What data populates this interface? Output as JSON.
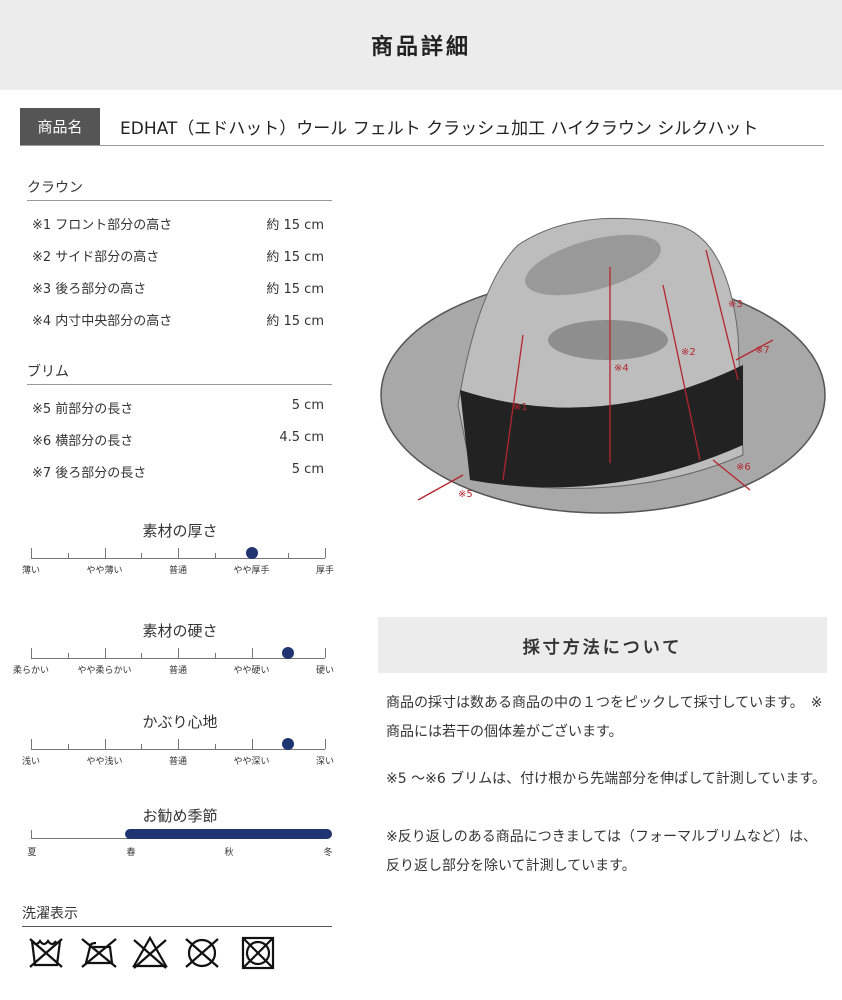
{
  "header": {
    "title": "商品詳細"
  },
  "product": {
    "label": "商品名",
    "name": "EDHAT（エドハット）ウール フェルト クラッシュ加工 ハイクラウン シルクハット"
  },
  "crown": {
    "title": "クラウン",
    "rows": [
      {
        "label": "※1  フロント部分の高さ",
        "value": "約 15 cm"
      },
      {
        "label": "※2  サイド部分の高さ",
        "value": "約 15 cm"
      },
      {
        "label": "※3  後ろ部分の高さ",
        "value": "約 15 cm"
      },
      {
        "label": "※4  内寸中央部分の高さ",
        "value": "約 15 cm"
      }
    ]
  },
  "brim": {
    "title": "ブリム",
    "rows": [
      {
        "label": "※5  前部分の長さ",
        "value": "5 cm"
      },
      {
        "label": "※6  横部分の長さ",
        "value": "4.5 cm"
      },
      {
        "label": "※7  後ろ部分の長さ",
        "value": "5 cm"
      }
    ]
  },
  "scales": [
    {
      "title": "素材の厚さ",
      "labels": [
        "薄い",
        "やや薄い",
        "普通",
        "やや厚手",
        "厚手"
      ],
      "level": 0.75
    },
    {
      "title": "素材の硬さ",
      "labels": [
        "柔らかい",
        "やや柔らかい",
        "普通",
        "やや硬い",
        "硬い"
      ],
      "level": 0.875
    },
    {
      "title": "かぶり心地",
      "labels": [
        "浅い",
        "やや浅い",
        "普通",
        "やや深い",
        "深い"
      ],
      "level": 0.875
    }
  ],
  "season": {
    "title": "お勧め季節",
    "labels": [
      "夏",
      "春",
      "秋",
      "冬"
    ],
    "range": [
      "春",
      "冬"
    ],
    "color": "#1f3470"
  },
  "laundry": {
    "title": "洗濯表示",
    "icons": [
      "no-wash-icon",
      "no-iron-icon",
      "no-bleach-icon",
      "no-tumble-dry-icon",
      "no-machine-dry-icon"
    ]
  },
  "diagram": {
    "marks": [
      "※1",
      "※2",
      "※3",
      "※4",
      "※5",
      "※6",
      "※7"
    ]
  },
  "measure": {
    "title": "採寸方法について",
    "p1": "商品の採寸は数ある商品の中の１つをピックして採寸しています。　※商品には若干の個体差がございます。",
    "p2": "※5 ～※6 ブリムは、付け根から先端部分を伸ばして計測しています。",
    "p3": "※反り返しのある商品につきましては（フォーマルブリムなど）は、反り返し部分を除いて計測しています。"
  }
}
